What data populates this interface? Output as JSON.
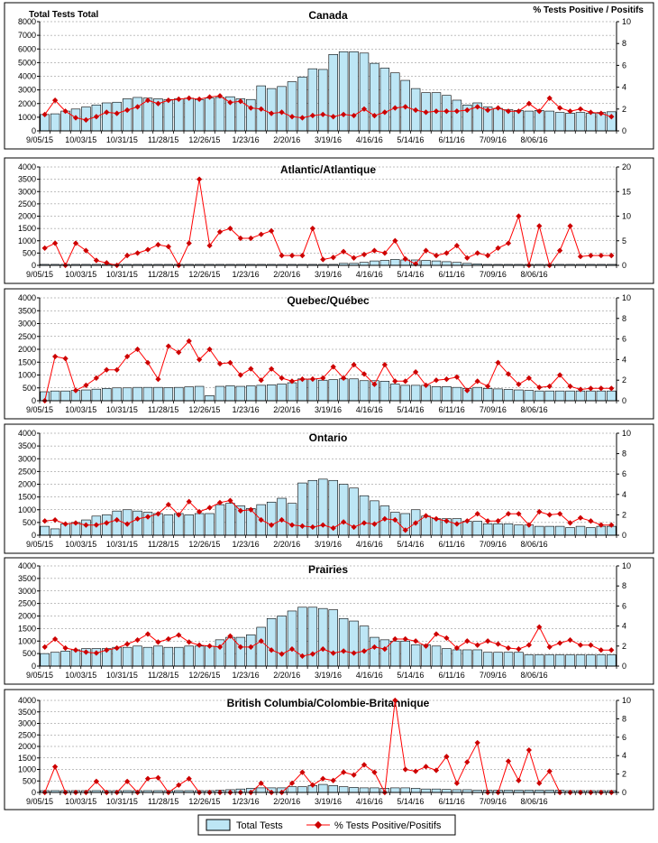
{
  "header": {
    "left_label": "Total Tests Total",
    "right_label": "% Tests Positive / Positifs"
  },
  "legend": {
    "bars_label": "Total Tests",
    "line_label": "% Tests Positive/Positifs"
  },
  "colors": {
    "bar_fill": "#BDE6F5",
    "bar_stroke": "#000000",
    "line": "#FF0000",
    "marker": "#CC0000",
    "grid": "#808080"
  },
  "chart_data": [
    {
      "type": "bar+line",
      "title": "Canada",
      "xticks": [
        "9/05/15",
        "10/03/15",
        "10/31/15",
        "11/28/15",
        "12/26/15",
        "1/23/16",
        "2/20/16",
        "3/19/16",
        "4/16/16",
        "5/14/16",
        "6/11/16",
        "7/09/16",
        "8/06/16"
      ],
      "ylim_left": [
        0,
        8000
      ],
      "yticks_left": [
        0,
        1000,
        2000,
        3000,
        4000,
        5000,
        6000,
        7000,
        8000
      ],
      "ylim_right": [
        0,
        10
      ],
      "yticks_right": [
        0,
        2,
        4,
        6,
        8,
        10
      ],
      "tests": [
        1200,
        1250,
        1450,
        1600,
        1750,
        1900,
        2050,
        2100,
        2350,
        2450,
        2400,
        2350,
        2300,
        2350,
        2400,
        2300,
        2400,
        2450,
        2500,
        2350,
        2300,
        3300,
        3100,
        3250,
        3600,
        3950,
        4550,
        4500,
        5600,
        5800,
        5800,
        5700,
        4950,
        4600,
        4250,
        3700,
        3100,
        2800,
        2800,
        2600,
        2250,
        1900,
        2050,
        1750,
        1650,
        1550,
        1500,
        1450,
        1500,
        1450,
        1350,
        1300,
        1350,
        1300,
        1350,
        1400
      ],
      "positive": [
        1.5,
        2.8,
        1.8,
        1.2,
        1.0,
        1.3,
        1.7,
        1.6,
        1.9,
        2.2,
        2.8,
        2.5,
        2.8,
        2.9,
        3.0,
        2.9,
        3.1,
        3.2,
        2.6,
        2.7,
        2.1,
        2.0,
        1.6,
        1.7,
        1.3,
        1.2,
        1.4,
        1.5,
        1.3,
        1.5,
        1.4,
        2.0,
        1.4,
        1.7,
        2.1,
        2.2,
        1.9,
        1.7,
        1.8,
        1.8,
        1.8,
        1.9,
        2.2,
        1.9,
        2.1,
        1.8,
        1.8,
        2.5,
        1.8,
        3.0,
        2.1,
        1.8,
        2.0,
        1.7,
        1.6,
        1.3
      ]
    },
    {
      "type": "bar+line",
      "title": "Atlantic/Atlantique",
      "xticks": [
        "9/05/15",
        "10/03/15",
        "10/31/15",
        "11/28/15",
        "12/26/15",
        "1/23/16",
        "2/20/16",
        "3/19/16",
        "4/16/16",
        "5/14/16",
        "6/11/16",
        "7/09/16",
        "8/06/16"
      ],
      "ylim_left": [
        0,
        4000
      ],
      "yticks_left": [
        0,
        500,
        1000,
        1500,
        2000,
        2500,
        3000,
        3500,
        4000
      ],
      "ylim_right": [
        0,
        20
      ],
      "yticks_right": [
        0,
        5,
        10,
        15,
        20
      ],
      "tests": [
        40,
        40,
        40,
        40,
        40,
        40,
        40,
        40,
        40,
        40,
        40,
        40,
        40,
        40,
        40,
        40,
        40,
        40,
        40,
        40,
        40,
        40,
        40,
        40,
        40,
        40,
        40,
        40,
        40,
        80,
        80,
        120,
        180,
        200,
        240,
        220,
        220,
        200,
        180,
        150,
        120,
        80,
        60,
        40,
        40,
        40,
        40,
        40,
        40,
        40,
        40,
        40,
        40,
        40,
        40,
        40
      ],
      "positive": [
        3.5,
        4.5,
        0,
        4.5,
        3.0,
        1.0,
        0.5,
        0,
        2.0,
        2.5,
        3.2,
        4.2,
        3.8,
        0,
        4.5,
        17.5,
        4.0,
        6.8,
        7.5,
        5.5,
        5.5,
        6.3,
        7.0,
        2.0,
        2.0,
        2.0,
        7.5,
        1.2,
        1.6,
        2.8,
        1.5,
        2.2,
        3.0,
        2.5,
        5.0,
        1.3,
        0.3,
        3.0,
        2.0,
        2.5,
        4.0,
        1.5,
        2.5,
        2.0,
        3.5,
        4.5,
        10.0,
        0,
        8.0,
        0,
        3.0,
        8.0,
        1.8,
        2.0,
        2.0,
        2.0
      ]
    },
    {
      "type": "bar+line",
      "title": "Quebec/Québec",
      "xticks": [
        "9/05/15",
        "10/03/15",
        "10/31/15",
        "11/28/15",
        "12/26/15",
        "1/23/16",
        "2/20/16",
        "3/19/16",
        "4/16/16",
        "5/14/16",
        "6/11/16",
        "7/09/16",
        "8/06/16"
      ],
      "ylim_left": [
        0,
        4000
      ],
      "yticks_left": [
        0,
        500,
        1000,
        1500,
        2000,
        2500,
        3000,
        3500,
        4000
      ],
      "ylim_right": [
        0,
        10
      ],
      "yticks_right": [
        0,
        2,
        4,
        6,
        8,
        10
      ],
      "tests": [
        350,
        380,
        380,
        400,
        420,
        450,
        480,
        500,
        500,
        520,
        520,
        520,
        510,
        520,
        540,
        560,
        200,
        560,
        580,
        560,
        580,
        600,
        620,
        650,
        700,
        850,
        850,
        800,
        820,
        850,
        850,
        780,
        780,
        760,
        650,
        600,
        600,
        600,
        550,
        550,
        520,
        480,
        520,
        480,
        460,
        440,
        420,
        400,
        380,
        380,
        380,
        380,
        380,
        380,
        380,
        380
      ],
      "positive": [
        0,
        4.3,
        4.1,
        1.0,
        1.5,
        2.2,
        3.0,
        3.0,
        4.3,
        5.0,
        3.7,
        2.1,
        5.3,
        4.7,
        5.8,
        4.0,
        5.0,
        3.6,
        3.7,
        2.5,
        3.1,
        2.0,
        3.1,
        2.2,
        1.9,
        2.1,
        2.1,
        2.2,
        3.3,
        2.2,
        3.5,
        2.6,
        1.6,
        3.5,
        1.9,
        1.9,
        2.8,
        1.5,
        2.0,
        2.1,
        2.3,
        1.0,
        1.9,
        1.4,
        3.7,
        2.6,
        1.6,
        2.2,
        1.3,
        1.4,
        2.5,
        1.4,
        1.1,
        1.2,
        1.2,
        1.2
      ]
    },
    {
      "type": "bar+line",
      "title": "Ontario",
      "xticks": [
        "9/05/15",
        "10/03/15",
        "10/31/15",
        "11/28/15",
        "12/26/15",
        "1/23/16",
        "2/20/16",
        "3/19/16",
        "4/16/16",
        "5/14/16",
        "6/11/16",
        "7/09/16",
        "8/06/16"
      ],
      "ylim_left": [
        0,
        4000
      ],
      "yticks_left": [
        0,
        500,
        1000,
        1500,
        2000,
        2500,
        3000,
        3500,
        4000
      ],
      "ylim_right": [
        0,
        10
      ],
      "yticks_right": [
        0,
        2,
        4,
        6,
        8,
        10
      ],
      "tests": [
        350,
        250,
        450,
        500,
        600,
        750,
        800,
        950,
        1000,
        950,
        900,
        850,
        800,
        850,
        800,
        850,
        850,
        1200,
        1250,
        1150,
        1050,
        1200,
        1300,
        1450,
        1250,
        2050,
        2150,
        2200,
        2150,
        2000,
        1850,
        1550,
        1350,
        1150,
        900,
        850,
        1000,
        750,
        650,
        650,
        650,
        550,
        550,
        450,
        450,
        450,
        400,
        400,
        350,
        350,
        350,
        300,
        350,
        300,
        350,
        350
      ],
      "positive": [
        1.4,
        1.5,
        1.1,
        1.2,
        1.0,
        1.0,
        1.2,
        1.5,
        1.1,
        1.6,
        1.8,
        2.1,
        3.0,
        2.0,
        3.3,
        2.3,
        2.7,
        3.2,
        3.4,
        2.4,
        2.5,
        1.5,
        1.0,
        1.5,
        1.0,
        0.9,
        0.8,
        1.0,
        0.7,
        1.3,
        0.8,
        1.2,
        1.1,
        1.6,
        1.5,
        0.5,
        1.2,
        1.9,
        1.6,
        1.4,
        1.1,
        1.4,
        2.1,
        1.4,
        1.4,
        2.1,
        2.1,
        1.0,
        2.3,
        2.0,
        2.1,
        1.2,
        1.7,
        1.4,
        1.0,
        1.0
      ]
    },
    {
      "type": "bar+line",
      "title": "Prairies",
      "xticks": [
        "9/05/15",
        "10/03/15",
        "10/31/15",
        "11/28/15",
        "12/26/15",
        "1/23/16",
        "2/20/16",
        "3/19/16",
        "4/16/16",
        "5/14/16",
        "6/11/16",
        "7/09/16",
        "8/06/16"
      ],
      "ylim_left": [
        0,
        4000
      ],
      "yticks_left": [
        0,
        500,
        1000,
        1500,
        2000,
        2500,
        3000,
        3500,
        4000
      ],
      "ylim_right": [
        0,
        10
      ],
      "yticks_right": [
        0,
        2,
        4,
        6,
        8,
        10
      ],
      "tests": [
        500,
        550,
        600,
        650,
        700,
        700,
        700,
        750,
        750,
        800,
        750,
        800,
        750,
        750,
        800,
        800,
        800,
        1050,
        1150,
        1150,
        1250,
        1550,
        1900,
        2000,
        2200,
        2350,
        2350,
        2300,
        2250,
        1900,
        1800,
        1600,
        1150,
        1050,
        1000,
        1000,
        850,
        850,
        800,
        700,
        650,
        650,
        650,
        550,
        550,
        550,
        550,
        450,
        450,
        450,
        450,
        450,
        450,
        450,
        450,
        450
      ],
      "positive": [
        1.9,
        2.7,
        1.8,
        1.6,
        1.4,
        1.3,
        1.6,
        1.8,
        2.2,
        2.6,
        3.2,
        2.4,
        2.7,
        3.1,
        2.4,
        2.1,
        2.0,
        1.9,
        3.0,
        1.9,
        1.9,
        2.5,
        1.6,
        1.2,
        1.7,
        1.0,
        1.2,
        1.7,
        1.3,
        1.5,
        1.3,
        1.5,
        1.9,
        1.7,
        2.7,
        2.7,
        2.5,
        2.0,
        3.2,
        2.8,
        1.8,
        2.5,
        2.1,
        2.5,
        2.2,
        1.8,
        1.7,
        2.1,
        3.9,
        1.9,
        2.3,
        2.6,
        2.1,
        2.1,
        1.6,
        1.6
      ]
    },
    {
      "type": "bar+line",
      "title": "British Columbia/Colombie-Britannique",
      "xticks": [
        "9/05/15",
        "10/03/15",
        "10/31/15",
        "11/28/15",
        "12/26/15",
        "1/23/16",
        "2/20/16",
        "3/19/16",
        "4/16/16",
        "5/14/16",
        "6/11/16",
        "7/09/16",
        "8/06/16"
      ],
      "ylim_left": [
        0,
        4000
      ],
      "yticks_left": [
        0,
        500,
        1000,
        1500,
        2000,
        2500,
        3000,
        3500,
        4000
      ],
      "ylim_right": [
        0,
        10
      ],
      "yticks_right": [
        0,
        2,
        4,
        6,
        8,
        10
      ],
      "tests": [
        80,
        80,
        80,
        80,
        80,
        80,
        80,
        80,
        80,
        80,
        80,
        80,
        80,
        80,
        80,
        80,
        80,
        100,
        120,
        150,
        180,
        200,
        200,
        200,
        250,
        250,
        300,
        350,
        300,
        250,
        220,
        200,
        200,
        180,
        200,
        200,
        180,
        150,
        150,
        130,
        120,
        120,
        100,
        100,
        100,
        100,
        100,
        100,
        100,
        100,
        100,
        80,
        80,
        80,
        80,
        80
      ],
      "positive": [
        0,
        2.8,
        0,
        0,
        0,
        1.2,
        0,
        0,
        1.2,
        0,
        1.5,
        1.6,
        0,
        0.8,
        1.5,
        0,
        0,
        0,
        0,
        0,
        0,
        1.0,
        0,
        0,
        1.0,
        2.2,
        0.8,
        1.5,
        1.3,
        2.2,
        1.9,
        3.0,
        2.2,
        0,
        10.0,
        2.5,
        2.3,
        2.8,
        2.4,
        3.9,
        1.0,
        3.3,
        5.4,
        0,
        0,
        3.4,
        1.3,
        4.6,
        1.0,
        2.3,
        0,
        0,
        0,
        0,
        0,
        0
      ]
    }
  ]
}
